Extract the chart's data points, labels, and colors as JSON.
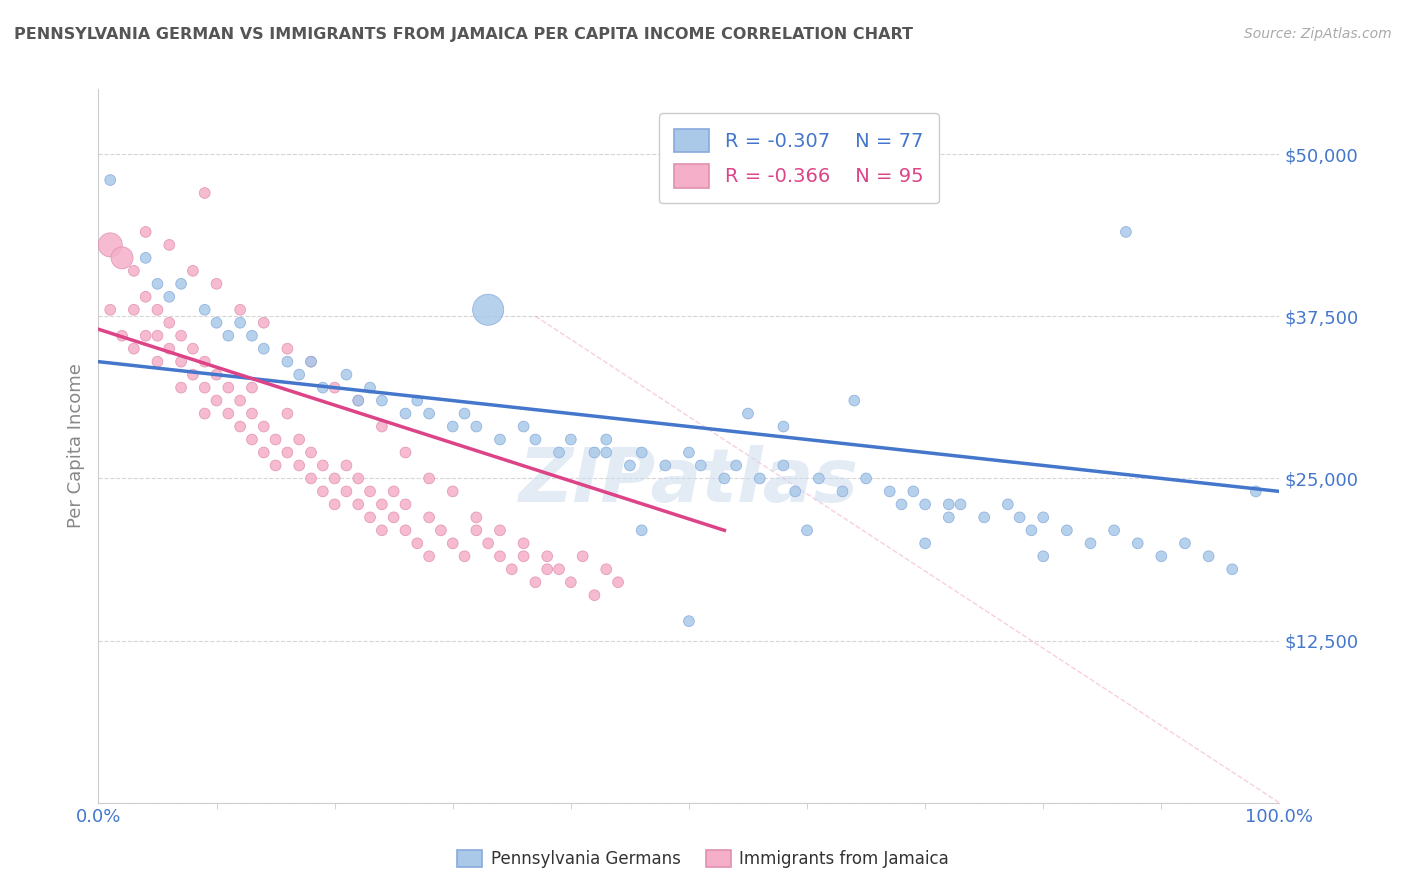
{
  "title": "PENNSYLVANIA GERMAN VS IMMIGRANTS FROM JAMAICA PER CAPITA INCOME CORRELATION CHART",
  "source": "Source: ZipAtlas.com",
  "ylabel": "Per Capita Income",
  "xlim": [
    0,
    1.0
  ],
  "ylim": [
    0,
    55000
  ],
  "yticks": [
    0,
    12500,
    25000,
    37500,
    50000
  ],
  "ytick_labels": [
    "",
    "$12,500",
    "$25,000",
    "$37,500",
    "$50,000"
  ],
  "xtick_labels": [
    "0.0%",
    "100.0%"
  ],
  "blue_R": -0.307,
  "blue_N": 77,
  "pink_R": -0.366,
  "pink_N": 95,
  "blue_color": "#aac9e8",
  "pink_color": "#f5afc8",
  "blue_line_color": "#4477cc",
  "pink_line_color": "#dd4488",
  "watermark": "ZIPatlas",
  "blue_trend_x0": 0.0,
  "blue_trend_y0": 34000,
  "blue_trend_x1": 1.0,
  "blue_trend_y1": 24000,
  "pink_trend_x0": 0.0,
  "pink_trend_y0": 36500,
  "pink_trend_x1": 0.53,
  "pink_trend_y1": 21000,
  "ref_line_x0": 0.37,
  "ref_line_y0": 37500,
  "ref_line_x1": 1.0,
  "ref_line_y1": 0,
  "background_color": "#ffffff",
  "grid_color": "#cccccc",
  "title_color": "#555555",
  "axis_color": "#4477cc",
  "ylabel_color": "#888888",
  "blue_scatter_x": [
    0.33,
    0.01,
    0.04,
    0.05,
    0.06,
    0.07,
    0.09,
    0.1,
    0.11,
    0.12,
    0.13,
    0.14,
    0.16,
    0.17,
    0.18,
    0.19,
    0.21,
    0.22,
    0.23,
    0.24,
    0.26,
    0.27,
    0.28,
    0.3,
    0.31,
    0.32,
    0.34,
    0.36,
    0.37,
    0.39,
    0.4,
    0.42,
    0.43,
    0.45,
    0.46,
    0.48,
    0.5,
    0.51,
    0.53,
    0.54,
    0.56,
    0.58,
    0.59,
    0.61,
    0.63,
    0.65,
    0.67,
    0.68,
    0.69,
    0.7,
    0.72,
    0.73,
    0.75,
    0.77,
    0.78,
    0.79,
    0.8,
    0.82,
    0.84,
    0.86,
    0.88,
    0.9,
    0.92,
    0.94,
    0.96,
    0.58,
    0.43,
    0.55,
    0.72,
    0.5,
    0.6,
    0.46,
    0.7,
    0.8,
    0.87,
    0.98,
    0.64
  ],
  "blue_scatter_y": [
    38000,
    48000,
    42000,
    40000,
    39000,
    40000,
    38000,
    37000,
    36000,
    37000,
    36000,
    35000,
    34000,
    33000,
    34000,
    32000,
    33000,
    31000,
    32000,
    31000,
    30000,
    31000,
    30000,
    29000,
    30000,
    29000,
    28000,
    29000,
    28000,
    27000,
    28000,
    27000,
    28000,
    26000,
    27000,
    26000,
    27000,
    26000,
    25000,
    26000,
    25000,
    26000,
    24000,
    25000,
    24000,
    25000,
    24000,
    23000,
    24000,
    23000,
    22000,
    23000,
    22000,
    23000,
    22000,
    21000,
    22000,
    21000,
    20000,
    21000,
    20000,
    19000,
    20000,
    19000,
    18000,
    29000,
    27000,
    30000,
    23000,
    14000,
    21000,
    21000,
    20000,
    19000,
    44000,
    24000,
    31000
  ],
  "blue_scatter_size": [
    500,
    60,
    60,
    60,
    60,
    60,
    60,
    60,
    60,
    60,
    60,
    60,
    60,
    60,
    60,
    60,
    60,
    60,
    60,
    60,
    60,
    60,
    60,
    60,
    60,
    60,
    60,
    60,
    60,
    60,
    60,
    60,
    60,
    60,
    60,
    60,
    60,
    60,
    60,
    60,
    60,
    60,
    60,
    60,
    60,
    60,
    60,
    60,
    60,
    60,
    60,
    60,
    60,
    60,
    60,
    60,
    60,
    60,
    60,
    60,
    60,
    60,
    60,
    60,
    60,
    60,
    60,
    60,
    60,
    60,
    60,
    60,
    60,
    60,
    60,
    60,
    60
  ],
  "pink_scatter_x": [
    0.01,
    0.01,
    0.02,
    0.02,
    0.03,
    0.03,
    0.03,
    0.04,
    0.04,
    0.05,
    0.05,
    0.05,
    0.06,
    0.06,
    0.07,
    0.07,
    0.07,
    0.08,
    0.08,
    0.09,
    0.09,
    0.09,
    0.1,
    0.1,
    0.11,
    0.11,
    0.12,
    0.12,
    0.13,
    0.13,
    0.13,
    0.14,
    0.14,
    0.15,
    0.15,
    0.16,
    0.16,
    0.17,
    0.17,
    0.18,
    0.18,
    0.19,
    0.19,
    0.2,
    0.2,
    0.21,
    0.21,
    0.22,
    0.22,
    0.23,
    0.23,
    0.24,
    0.24,
    0.25,
    0.25,
    0.26,
    0.26,
    0.27,
    0.28,
    0.28,
    0.29,
    0.3,
    0.31,
    0.32,
    0.33,
    0.34,
    0.35,
    0.36,
    0.37,
    0.38,
    0.39,
    0.4,
    0.41,
    0.42,
    0.43,
    0.44,
    0.09,
    0.04,
    0.06,
    0.08,
    0.1,
    0.12,
    0.14,
    0.16,
    0.18,
    0.2,
    0.22,
    0.24,
    0.26,
    0.28,
    0.3,
    0.32,
    0.34,
    0.36,
    0.38
  ],
  "pink_scatter_y": [
    43000,
    38000,
    42000,
    36000,
    41000,
    38000,
    35000,
    39000,
    36000,
    38000,
    36000,
    34000,
    37000,
    35000,
    36000,
    34000,
    32000,
    35000,
    33000,
    34000,
    32000,
    30000,
    33000,
    31000,
    32000,
    30000,
    31000,
    29000,
    30000,
    28000,
    32000,
    29000,
    27000,
    28000,
    26000,
    27000,
    30000,
    26000,
    28000,
    25000,
    27000,
    24000,
    26000,
    25000,
    23000,
    24000,
    26000,
    23000,
    25000,
    22000,
    24000,
    23000,
    21000,
    22000,
    24000,
    21000,
    23000,
    20000,
    22000,
    19000,
    21000,
    20000,
    19000,
    21000,
    20000,
    19000,
    18000,
    20000,
    17000,
    19000,
    18000,
    17000,
    19000,
    16000,
    18000,
    17000,
    47000,
    44000,
    43000,
    41000,
    40000,
    38000,
    37000,
    35000,
    34000,
    32000,
    31000,
    29000,
    27000,
    25000,
    24000,
    22000,
    21000,
    19000,
    18000
  ],
  "pink_scatter_size": [
    300,
    60,
    250,
    60,
    60,
    60,
    60,
    60,
    60,
    60,
    60,
    60,
    60,
    60,
    60,
    60,
    60,
    60,
    60,
    60,
    60,
    60,
    60,
    60,
    60,
    60,
    60,
    60,
    60,
    60,
    60,
    60,
    60,
    60,
    60,
    60,
    60,
    60,
    60,
    60,
    60,
    60,
    60,
    60,
    60,
    60,
    60,
    60,
    60,
    60,
    60,
    60,
    60,
    60,
    60,
    60,
    60,
    60,
    60,
    60,
    60,
    60,
    60,
    60,
    60,
    60,
    60,
    60,
    60,
    60,
    60,
    60,
    60,
    60,
    60,
    60,
    60,
    60,
    60,
    60,
    60,
    60,
    60,
    60,
    60,
    60,
    60,
    60,
    60,
    60,
    60,
    60,
    60,
    60,
    60
  ]
}
